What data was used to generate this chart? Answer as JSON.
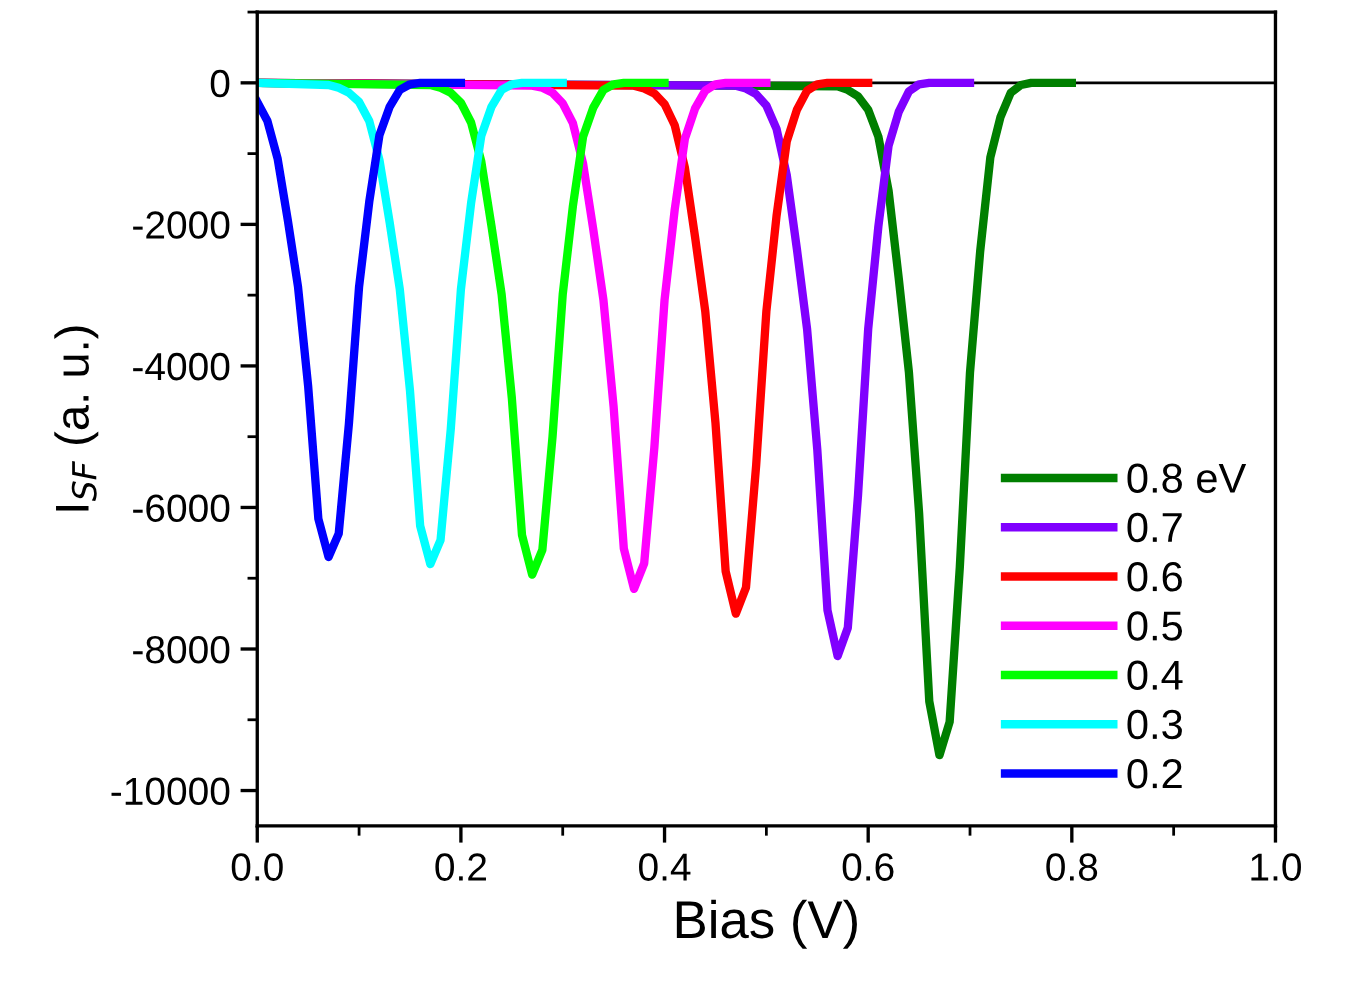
{
  "chart_data": {
    "type": "line",
    "xlabel": "Bias (V)",
    "ylabel": "I$_{SF}$ (a. u.)",
    "xlim": [
      0,
      1.0
    ],
    "xticks": [
      {
        "value": 0,
        "label": "0.0"
      },
      0.2,
      0.4,
      0.6,
      0.8,
      {
        "value": 1.0,
        "label": "1.0"
      }
    ],
    "ylim": [
      -10500,
      1000
    ],
    "yticks": [
      -10000,
      -8000,
      -6000,
      -4000,
      -2000,
      0
    ],
    "grid": false,
    "legend": "bottom right",
    "line_style": "solid",
    "marker": "none",
    "ref_lines": [
      {
        "axis": "y",
        "value": 0,
        "color": "#000000"
      }
    ],
    "series": [
      {
        "name": "0.8 eV",
        "color": "#007f00",
        "x": [
          0,
          0.57,
          0.58,
          0.59,
          0.6,
          0.61,
          0.62,
          0.63,
          0.64,
          0.65,
          0.66,
          0.67,
          0.68,
          0.69,
          0.7,
          0.71,
          0.72,
          0.73,
          0.74,
          0.75,
          0.76,
          0.8
        ],
        "values": [
          0,
          -50,
          -100,
          -190,
          -380,
          -760,
          -1520,
          -2760,
          -4090,
          -6080,
          -8740,
          -9500,
          -9030,
          -6840,
          -4090,
          -2380,
          -1050,
          -480,
          -140,
          -30,
          0,
          0
        ]
      },
      {
        "name": "0.7",
        "color": "#8000ff",
        "x": [
          0,
          0.47,
          0.48,
          0.49,
          0.5,
          0.51,
          0.52,
          0.53,
          0.54,
          0.55,
          0.56,
          0.57,
          0.58,
          0.59,
          0.6,
          0.61,
          0.62,
          0.63,
          0.64,
          0.65,
          0.66,
          0.7
        ],
        "values": [
          0,
          -40,
          -80,
          -160,
          -320,
          -650,
          -1300,
          -2350,
          -3480,
          -5180,
          -7450,
          -8100,
          -7700,
          -5830,
          -3480,
          -2030,
          -890,
          -410,
          -120,
          -20,
          0,
          0
        ]
      },
      {
        "name": "0.6",
        "color": "#ff0000",
        "x": [
          0,
          0.37,
          0.38,
          0.39,
          0.4,
          0.41,
          0.42,
          0.43,
          0.44,
          0.45,
          0.46,
          0.47,
          0.48,
          0.49,
          0.5,
          0.51,
          0.52,
          0.53,
          0.54,
          0.55,
          0.56,
          0.6
        ],
        "values": [
          0,
          -40,
          -80,
          -150,
          -300,
          -600,
          -1200,
          -2180,
          -3230,
          -4800,
          -6900,
          -7500,
          -7130,
          -5400,
          -3230,
          -1880,
          -830,
          -380,
          -110,
          -20,
          0,
          0
        ]
      },
      {
        "name": "0.5",
        "color": "#ff00ff",
        "x": [
          0,
          0.27,
          0.28,
          0.29,
          0.3,
          0.31,
          0.32,
          0.33,
          0.34,
          0.35,
          0.36,
          0.37,
          0.38,
          0.39,
          0.4,
          0.41,
          0.42,
          0.43,
          0.44,
          0.45,
          0.46,
          0.5
        ],
        "values": [
          0,
          -40,
          -70,
          -140,
          -290,
          -570,
          -1140,
          -2070,
          -3070,
          -4580,
          -6580,
          -7150,
          -6790,
          -5150,
          -3070,
          -1790,
          -790,
          -360,
          -110,
          -20,
          0,
          0
        ]
      },
      {
        "name": "0.4",
        "color": "#00ff00",
        "x": [
          0,
          0.17,
          0.18,
          0.19,
          0.2,
          0.21,
          0.22,
          0.23,
          0.24,
          0.25,
          0.26,
          0.27,
          0.28,
          0.29,
          0.3,
          0.31,
          0.32,
          0.33,
          0.34,
          0.35,
          0.36,
          0.4
        ],
        "values": [
          0,
          -30,
          -70,
          -140,
          -280,
          -560,
          -1110,
          -2020,
          -2990,
          -4450,
          -6390,
          -6950,
          -6600,
          -5000,
          -2990,
          -1740,
          -760,
          -350,
          -100,
          -20,
          0,
          0
        ]
      },
      {
        "name": "0.3",
        "color": "#00ffff",
        "x": [
          0,
          0.07,
          0.08,
          0.09,
          0.1,
          0.11,
          0.12,
          0.13,
          0.14,
          0.15,
          0.16,
          0.17,
          0.18,
          0.19,
          0.2,
          0.21,
          0.22,
          0.23,
          0.24,
          0.25,
          0.26,
          0.3
        ],
        "values": [
          0,
          -30,
          -70,
          -140,
          -270,
          -540,
          -1090,
          -1970,
          -2920,
          -4350,
          -6260,
          -6800,
          -6460,
          -4900,
          -2920,
          -1700,
          -750,
          -340,
          -100,
          -20,
          0,
          0
        ]
      },
      {
        "name": "0.2",
        "color": "#0000ff",
        "x": [
          0,
          0.01,
          0.02,
          0.03,
          0.04,
          0.05,
          0.06,
          0.07,
          0.08,
          0.09,
          0.1,
          0.11,
          0.12,
          0.13,
          0.14,
          0.15,
          0.16,
          0.2
        ],
        "values": [
          -270,
          -540,
          -1070,
          -1940,
          -2880,
          -4290,
          -6160,
          -6700,
          -6370,
          -4820,
          -2880,
          -1680,
          -740,
          -340,
          -100,
          -20,
          0,
          0
        ]
      }
    ]
  }
}
